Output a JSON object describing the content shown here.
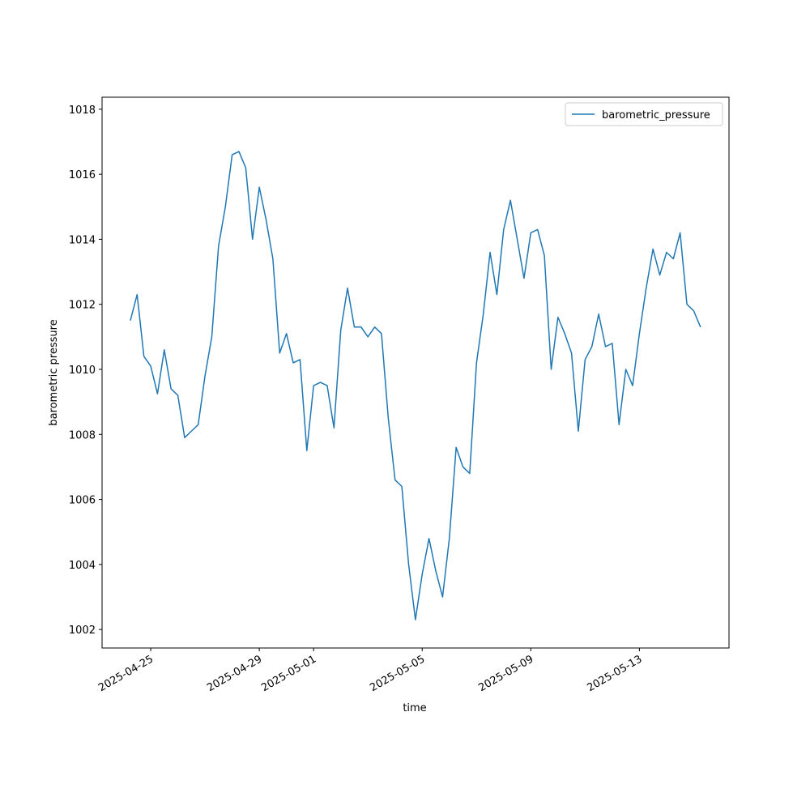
{
  "chart_data": {
    "type": "line",
    "xlabel": "time",
    "ylabel": "barometric pressure",
    "x": [
      "2025-04-24T06:00",
      "2025-04-24T12:00",
      "2025-04-24T18:00",
      "2025-04-25T00:00",
      "2025-04-25T06:00",
      "2025-04-25T12:00",
      "2025-04-25T18:00",
      "2025-04-26T00:00",
      "2025-04-26T06:00",
      "2025-04-26T12:00",
      "2025-04-26T18:00",
      "2025-04-27T00:00",
      "2025-04-27T06:00",
      "2025-04-27T12:00",
      "2025-04-27T18:00",
      "2025-04-28T00:00",
      "2025-04-28T06:00",
      "2025-04-28T12:00",
      "2025-04-28T18:00",
      "2025-04-29T00:00",
      "2025-04-29T06:00",
      "2025-04-29T12:00",
      "2025-04-29T18:00",
      "2025-04-30T00:00",
      "2025-04-30T06:00",
      "2025-04-30T12:00",
      "2025-04-30T18:00",
      "2025-05-01T00:00",
      "2025-05-01T06:00",
      "2025-05-01T12:00",
      "2025-05-01T18:00",
      "2025-05-02T00:00",
      "2025-05-02T06:00",
      "2025-05-02T12:00",
      "2025-05-02T18:00",
      "2025-05-03T00:00",
      "2025-05-03T06:00",
      "2025-05-03T12:00",
      "2025-05-03T18:00",
      "2025-05-04T00:00",
      "2025-05-04T06:00",
      "2025-05-04T12:00",
      "2025-05-04T18:00",
      "2025-05-05T00:00",
      "2025-05-05T06:00",
      "2025-05-05T12:00",
      "2025-05-05T18:00",
      "2025-05-06T00:00",
      "2025-05-06T06:00",
      "2025-05-06T12:00",
      "2025-05-06T18:00",
      "2025-05-07T00:00",
      "2025-05-07T06:00",
      "2025-05-07T12:00",
      "2025-05-07T18:00",
      "2025-05-08T00:00",
      "2025-05-08T06:00",
      "2025-05-08T12:00",
      "2025-05-08T18:00",
      "2025-05-09T00:00",
      "2025-05-09T06:00",
      "2025-05-09T12:00",
      "2025-05-09T18:00",
      "2025-05-10T00:00",
      "2025-05-10T06:00",
      "2025-05-10T12:00",
      "2025-05-10T18:00",
      "2025-05-11T00:00",
      "2025-05-11T06:00",
      "2025-05-11T12:00",
      "2025-05-11T18:00",
      "2025-05-12T00:00",
      "2025-05-12T06:00",
      "2025-05-12T12:00",
      "2025-05-12T18:00",
      "2025-05-13T00:00",
      "2025-05-13T06:00",
      "2025-05-13T12:00",
      "2025-05-13T18:00",
      "2025-05-14T00:00",
      "2025-05-14T06:00",
      "2025-05-14T12:00",
      "2025-05-14T18:00",
      "2025-05-15T00:00",
      "2025-05-15T06:00"
    ],
    "series": [
      {
        "name": "barometric_pressure",
        "color": "#1f77b4",
        "values": [
          1011.5,
          1012.3,
          1010.4,
          1010.1,
          1009.25,
          1010.6,
          1009.4,
          1009.2,
          1007.9,
          1008.1,
          1008.3,
          1009.8,
          1011.0,
          1013.8,
          1015.0,
          1016.6,
          1016.7,
          1016.2,
          1014.0,
          1015.6,
          1014.6,
          1013.4,
          1010.5,
          1011.1,
          1010.2,
          1010.3,
          1007.5,
          1009.5,
          1009.6,
          1009.5,
          1008.2,
          1011.2,
          1012.5,
          1011.3,
          1011.3,
          1011.0,
          1011.3,
          1011.1,
          1008.5,
          1006.6,
          1006.4,
          1004.0,
          1002.3,
          1003.7,
          1004.8,
          1003.8,
          1003.0,
          1004.8,
          1007.6,
          1007.0,
          1006.8,
          1010.2,
          1011.7,
          1013.6,
          1012.3,
          1014.3,
          1015.2,
          1014.0,
          1012.8,
          1014.2,
          1014.3,
          1013.5,
          1010.0,
          1011.6,
          1011.1,
          1010.5,
          1008.1,
          1010.3,
          1010.7,
          1011.7,
          1010.7,
          1010.8,
          1008.3,
          1010.0,
          1009.5,
          1011.1,
          1012.5,
          1013.7,
          1012.9,
          1013.6,
          1013.4,
          1014.2,
          1012.0,
          1011.8,
          1011.3
        ]
      }
    ],
    "xlim": [
      "2025-04-23T05:00",
      "2025-05-16T07:12"
    ],
    "xticks": [
      "2025-04-25",
      "2025-04-29",
      "2025-05-01",
      "2025-05-05",
      "2025-05-09",
      "2025-05-13"
    ],
    "ylim": [
      1001.43,
      1018.37
    ],
    "yticks": [
      1002,
      1004,
      1006,
      1008,
      1010,
      1012,
      1014,
      1016,
      1018
    ],
    "legend": "upper right",
    "grid": false
  }
}
